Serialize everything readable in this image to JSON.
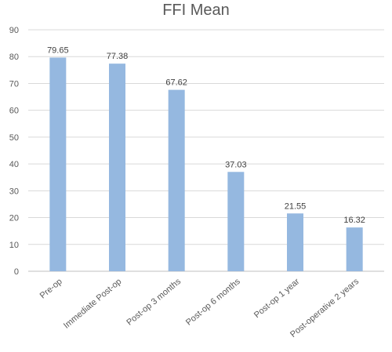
{
  "chart_data": {
    "type": "bar",
    "title": "FFI Mean",
    "xlabel": "",
    "ylabel": "",
    "categories": [
      "Pre-op",
      "Immediate Post-op",
      "Post-op 3 months",
      "Post-op 6 months",
      "Post-op 1 year",
      "Post-operative  2 years"
    ],
    "values": [
      79.65,
      77.38,
      67.62,
      37.03,
      21.55,
      16.32
    ],
    "data_labels": [
      "79.65",
      "77.38",
      "67.62",
      "37.03",
      "21.55",
      "16.32"
    ],
    "ylim": [
      0,
      90
    ],
    "y_ticks": [
      "0",
      "10",
      "20",
      "30",
      "40",
      "50",
      "60",
      "70",
      "80",
      "90"
    ],
    "grid": true,
    "legend": "none",
    "bar_color": "#95b8e0"
  }
}
